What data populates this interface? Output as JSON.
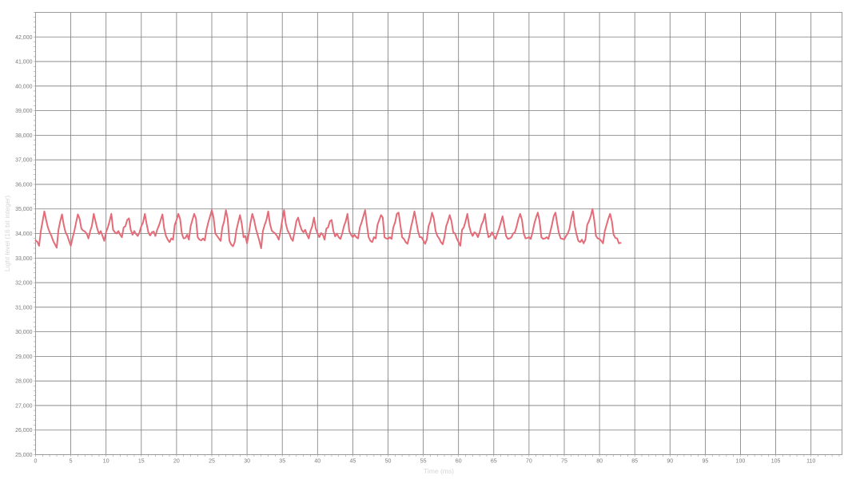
{
  "colors": {
    "series_line": "#e46c78",
    "grid": "#7a7a7a",
    "frame": "#9a9a9a",
    "tick_label": "#7a7a7a",
    "axis_title": "#d6d6d6",
    "background": "#ffffff"
  },
  "chart_data": {
    "type": "line",
    "xlabel": "Time (ms)",
    "ylabel": "Light level (16 bit integer)",
    "xlim": [
      0,
      114.4
    ],
    "ylim": [
      25000,
      43000
    ],
    "grid": true,
    "legend": "none",
    "x_ticks": [
      0,
      5,
      10,
      15,
      20,
      25,
      30,
      35,
      40,
      45,
      50,
      55,
      60,
      65,
      70,
      75,
      80,
      85,
      90,
      95,
      100,
      105,
      110
    ],
    "x_tick_labels": [
      "0",
      "5",
      "10",
      "15",
      "20",
      "25",
      "30",
      "35",
      "40",
      "45",
      "50",
      "55",
      "60",
      "65",
      "70",
      "75",
      "80",
      "85",
      "90",
      "95",
      "100",
      "105",
      "110"
    ],
    "y_ticks": [
      25000,
      26000,
      27000,
      28000,
      29000,
      30000,
      31000,
      32000,
      33000,
      34000,
      35000,
      36000,
      37000,
      38000,
      39000,
      40000,
      41000,
      42000
    ],
    "y_tick_labels": [
      "25,000",
      "26,000",
      "27,000",
      "28,000",
      "29,000",
      "30,000",
      "31,000",
      "32,000",
      "33,000",
      "34,000",
      "35,000",
      "36,000",
      "37,000",
      "38,000",
      "39,000",
      "40,000",
      "41,000",
      "42,000"
    ],
    "series": [
      {
        "x_start": 0,
        "x_step": 0.25,
        "values": [
          33720,
          33660,
          33500,
          34100,
          34500,
          34900,
          34550,
          34250,
          34050,
          33900,
          33700,
          33560,
          33420,
          34150,
          34500,
          34780,
          34350,
          34050,
          33920,
          33700,
          33500,
          33820,
          34100,
          34450,
          34780,
          34600,
          34200,
          34120,
          34080,
          34000,
          33800,
          34100,
          34320,
          34800,
          34500,
          34200,
          33980,
          34100,
          33900,
          33700,
          34050,
          34250,
          34500,
          34800,
          34150,
          34050,
          34000,
          34100,
          33950,
          33850,
          34250,
          34300,
          34550,
          34620,
          34150,
          33950,
          34100,
          33980,
          33900,
          34050,
          34300,
          34450,
          34800,
          34400,
          34050,
          33920,
          34050,
          34080,
          33900,
          34150,
          34320,
          34550,
          34780,
          34200,
          33900,
          33750,
          33650,
          33800,
          33750,
          34350,
          34550,
          34800,
          34600,
          34000,
          33800,
          33820,
          33950,
          33750,
          34300,
          34550,
          34800,
          34620,
          33850,
          33750,
          33720,
          33800,
          33720,
          34150,
          34450,
          34700,
          34950,
          34650,
          34000,
          33900,
          33800,
          33700,
          34250,
          34500,
          34950,
          34600,
          33700,
          33550,
          33480,
          33650,
          34150,
          34450,
          34750,
          34400,
          33850,
          33900,
          33600,
          34000,
          34450,
          34800,
          34550,
          34200,
          33950,
          33700,
          33400,
          34100,
          34350,
          34550,
          34900,
          34400,
          34120,
          34050,
          34000,
          33900,
          33750,
          34100,
          34550,
          34950,
          34400,
          34120,
          34000,
          33800,
          33700,
          34100,
          34500,
          34650,
          34350,
          34150,
          34050,
          34150,
          33950,
          33800,
          34100,
          34300,
          34650,
          34200,
          34000,
          33850,
          34020,
          33950,
          33750,
          34200,
          34250,
          34500,
          34550,
          34100,
          33880,
          34000,
          33850,
          33780,
          34000,
          34300,
          34500,
          34800,
          34100,
          33950,
          33850,
          33950,
          33850,
          33800,
          34250,
          34450,
          34700,
          34950,
          34350,
          33850,
          33700,
          33650,
          33850,
          33800,
          34350,
          34550,
          34750,
          34650,
          33850,
          33800,
          33780,
          33850,
          33780,
          34250,
          34450,
          34800,
          34850,
          34350,
          33850,
          33780,
          33650,
          33580,
          33850,
          34250,
          34550,
          34900,
          34500,
          34100,
          33850,
          33850,
          33720,
          33580,
          33750,
          34300,
          34500,
          34850,
          34600,
          34100,
          33900,
          33800,
          33650,
          33560,
          33850,
          34300,
          34500,
          34750,
          34500,
          34050,
          34000,
          33800,
          33650,
          33500,
          34150,
          34250,
          34500,
          34800,
          34320,
          34050,
          33900,
          34050,
          34000,
          33850,
          34050,
          34350,
          34500,
          34800,
          34200,
          33850,
          33900,
          34050,
          33900,
          33780,
          34000,
          34200,
          34450,
          34700,
          34300,
          33900,
          33780,
          33800,
          33850,
          34000,
          34050,
          34300,
          34600,
          34800,
          34550,
          34000,
          33800,
          33820,
          33850,
          33780,
          34050,
          34400,
          34650,
          34850,
          34500,
          33850,
          33780,
          33800,
          33850,
          33780,
          34050,
          34350,
          34700,
          34850,
          34400,
          34000,
          33800,
          33780,
          33760,
          33900,
          34000,
          34200,
          34600,
          34900,
          34300,
          33950,
          33700,
          33650,
          33750,
          33600,
          33750,
          34350,
          34500,
          34700,
          35000,
          34550,
          33900,
          33800,
          33780,
          33700,
          33600,
          34100,
          34350,
          34600,
          34800,
          34500,
          33950,
          33820,
          33800,
          33600,
          33620
        ]
      }
    ]
  }
}
